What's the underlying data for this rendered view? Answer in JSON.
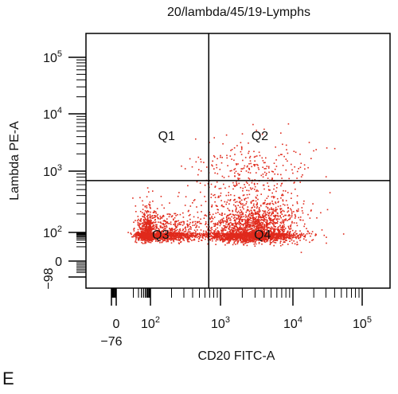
{
  "chart_data": {
    "type": "scatter",
    "title": "20/lambda/45/19-Lymphs",
    "xlabel": "CD20 FITC-A",
    "ylabel": "Lambda PE-A",
    "xscale": "biexponential",
    "yscale": "biexponential",
    "xlim": [
      -76,
      170000
    ],
    "ylim": [
      -98,
      200000
    ],
    "x_ticks": [
      {
        "value": -76,
        "label": "−76"
      },
      {
        "value": 0,
        "label": "0"
      },
      {
        "value": 100,
        "label": "10",
        "exp": "2"
      },
      {
        "value": 1000,
        "label": "10",
        "exp": "3"
      },
      {
        "value": 10000,
        "label": "10",
        "exp": "4"
      },
      {
        "value": 100000,
        "label": "10",
        "exp": "5"
      }
    ],
    "y_ticks": [
      {
        "value": -98,
        "label": "−98"
      },
      {
        "value": 0,
        "label": "0"
      },
      {
        "value": 100,
        "label": "10",
        "exp": "2"
      },
      {
        "value": 1000,
        "label": "10",
        "exp": "3"
      },
      {
        "value": 10000,
        "label": "10",
        "exp": "4"
      },
      {
        "value": 100000,
        "label": "10",
        "exp": "5"
      }
    ],
    "gates": {
      "x": 680,
      "y": 700
    },
    "quadrants": [
      {
        "label": "Q1",
        "x": 170,
        "y": 4000
      },
      {
        "label": "Q2",
        "x": 3500,
        "y": 4000
      },
      {
        "label": "Q3",
        "x": 140,
        "y": 60
      },
      {
        "label": "Q4",
        "x": 3800,
        "y": 60
      }
    ],
    "point_color": "#e02a1c",
    "grid": false,
    "legend": "none",
    "populations": [
      {
        "x_center": 100,
        "y_center": 80,
        "x_spread_log": 0.38,
        "y_spread_log": 0.22,
        "count": 1700
      },
      {
        "x_center": 2800,
        "y_center": 90,
        "x_spread_log": 0.33,
        "y_spread_log": 0.28,
        "count": 2600
      },
      {
        "x_center": 2500,
        "y_center": 900,
        "x_spread_log": 0.45,
        "y_spread_log": 0.32,
        "count": 320
      }
    ]
  },
  "panel_label": "E"
}
